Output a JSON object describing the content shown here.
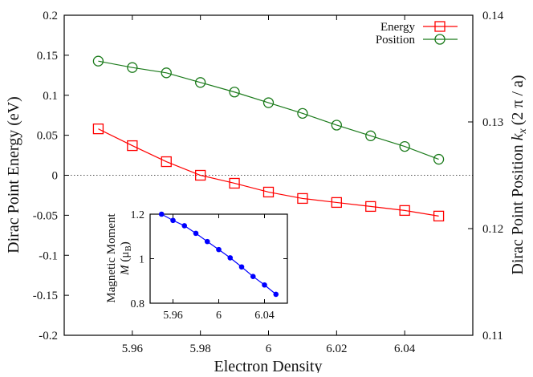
{
  "chart_data": [
    {
      "type": "line",
      "xlabel": "Electron Density",
      "ylabel_left": "Dirac Point Energy (eV)",
      "ylabel_right": "Dirac Point Position",
      "ylabel_right_var": "k",
      "ylabel_right_sub": "x",
      "ylabel_right_unit": "(2 π / a)",
      "xlim": [
        5.94,
        6.06
      ],
      "ylim_left": [
        -0.2,
        0.2
      ],
      "ylim_right": [
        0.11,
        0.14
      ],
      "x_ticks": [
        "5.96",
        "5.98",
        "6",
        "6.02",
        "6.04"
      ],
      "y_left_ticks": [
        "0.2",
        "0.15",
        "0.1",
        "0.05",
        "0",
        "-0.05",
        "-0.1",
        "-0.15",
        "-0.2"
      ],
      "y_right_ticks": [
        "0.14",
        "0.13",
        "0.12",
        "0.11"
      ],
      "zero_line": true,
      "legend_position": "top-right",
      "x": [
        5.95,
        5.96,
        5.97,
        5.98,
        5.99,
        6.0,
        6.01,
        6.02,
        6.03,
        6.04,
        6.05
      ],
      "series": [
        {
          "name": "Energy",
          "axis": "left",
          "color": "#ff0000",
          "marker": "square",
          "values": [
            0.058,
            0.037,
            0.017,
            0.0,
            -0.01,
            -0.021,
            -0.029,
            -0.034,
            -0.039,
            -0.044,
            -0.051
          ]
        },
        {
          "name": "Position",
          "axis": "right",
          "color": "#1a7a1a",
          "marker": "circle",
          "values": [
            0.1357,
            0.1351,
            0.1346,
            0.1337,
            0.1328,
            0.1318,
            0.1308,
            0.1297,
            0.1287,
            0.1277,
            0.1265
          ]
        }
      ]
    },
    {
      "type": "line",
      "inset": true,
      "ylabel_line1": "Magnetic Moment",
      "ylabel_var": "M",
      "ylabel_unit": "(μ",
      "ylabel_unit_sub": "B",
      "xlim": [
        5.94,
        6.06
      ],
      "ylim": [
        0.8,
        1.2
      ],
      "x_ticks": [
        "5.96",
        "6",
        "6.04"
      ],
      "y_ticks": [
        "1.2",
        "1",
        "0.8"
      ],
      "x": [
        5.95,
        5.96,
        5.97,
        5.98,
        5.99,
        6.0,
        6.01,
        6.02,
        6.03,
        6.04,
        6.05
      ],
      "series": [
        {
          "color": "#0000ff",
          "marker": "dot",
          "values": [
            1.2,
            1.172,
            1.148,
            1.114,
            1.077,
            1.041,
            1.004,
            0.963,
            0.92,
            0.882,
            0.84
          ]
        }
      ]
    }
  ]
}
